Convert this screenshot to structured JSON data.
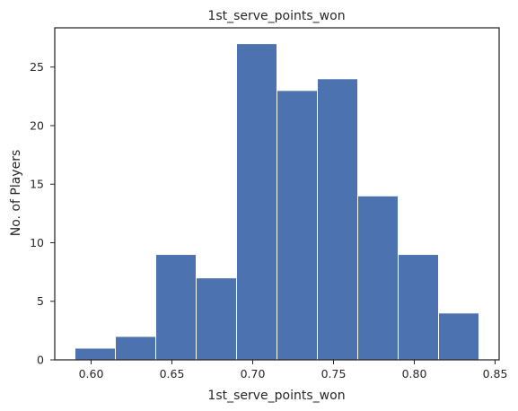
{
  "chart_data": {
    "type": "bar",
    "title": "1st_serve_points_won",
    "xlabel": "1st_serve_points_won",
    "ylabel": "No. of Players",
    "bins": [
      {
        "start": 0.59,
        "end": 0.615,
        "value": 1
      },
      {
        "start": 0.615,
        "end": 0.64,
        "value": 2
      },
      {
        "start": 0.64,
        "end": 0.665,
        "value": 9
      },
      {
        "start": 0.665,
        "end": 0.69,
        "value": 7
      },
      {
        "start": 0.69,
        "end": 0.715,
        "value": 27
      },
      {
        "start": 0.715,
        "end": 0.74,
        "value": 23
      },
      {
        "start": 0.74,
        "end": 0.765,
        "value": 24
      },
      {
        "start": 0.765,
        "end": 0.79,
        "value": 14
      },
      {
        "start": 0.79,
        "end": 0.815,
        "value": 9
      },
      {
        "start": 0.815,
        "end": 0.84,
        "value": 4
      }
    ],
    "xlim": [
      0.5775,
      0.8525
    ],
    "ylim": [
      0,
      28.35
    ],
    "xticks": [
      {
        "value": 0.6,
        "label": "0.60"
      },
      {
        "value": 0.65,
        "label": "0.65"
      },
      {
        "value": 0.7,
        "label": "0.70"
      },
      {
        "value": 0.75,
        "label": "0.75"
      },
      {
        "value": 0.8,
        "label": "0.80"
      },
      {
        "value": 0.85,
        "label": "0.85"
      }
    ],
    "yticks": [
      {
        "value": 0,
        "label": "0"
      },
      {
        "value": 5,
        "label": "5"
      },
      {
        "value": 10,
        "label": "10"
      },
      {
        "value": 15,
        "label": "15"
      },
      {
        "value": 20,
        "label": "20"
      },
      {
        "value": 25,
        "label": "25"
      }
    ],
    "grid": false,
    "bar_color": "#4c72b0",
    "bar_edge_color": "#ffffff"
  }
}
